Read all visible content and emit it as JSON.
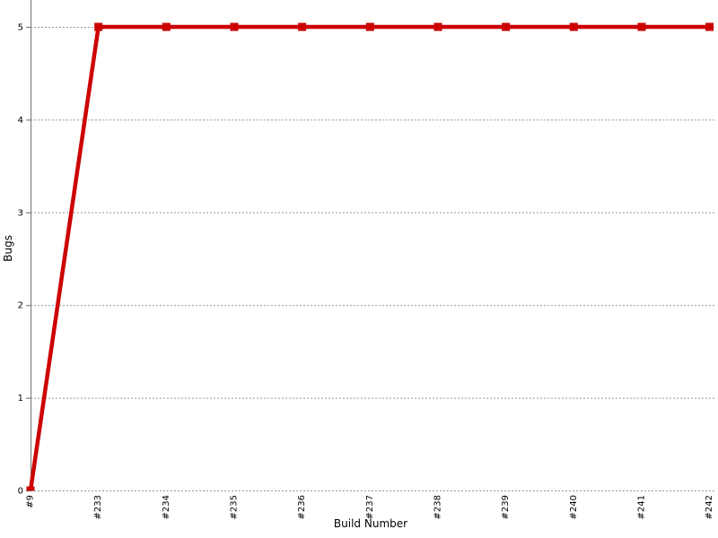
{
  "chart_data": {
    "type": "line",
    "title": "",
    "xlabel": "Build Number",
    "ylabel": "Bugs",
    "categories": [
      "#9",
      "#233",
      "#234",
      "#235",
      "#236",
      "#237",
      "#238",
      "#239",
      "#240",
      "#241",
      "#242"
    ],
    "series": [
      {
        "name": "Bugs",
        "color": "#cc0000",
        "values": [
          0,
          5,
          5,
          5,
          5,
          5,
          5,
          5,
          5,
          5,
          5
        ]
      }
    ],
    "yticks": [
      0,
      1,
      2,
      3,
      4,
      5
    ],
    "ylim": [
      0,
      5.3
    ],
    "grid": true,
    "gridline_color": "#999999",
    "axis_line_color": "#808080",
    "legend": "none",
    "background_color": "#ffffff"
  }
}
